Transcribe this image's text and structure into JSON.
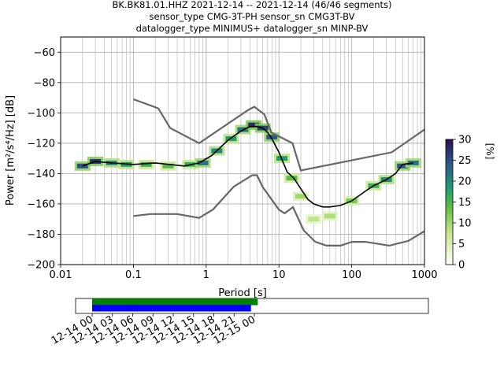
{
  "header": {
    "title_line1": "BK.BK81.01.HHZ   2021-12-14 -- 2021-12-14  (46/46 segments)",
    "title_line2": "sensor_type CMG-3T-PH sensor_sn CMG3T-BV",
    "title_line3": "datalogger_type MINIMUS+ datalogger_sn MINP-BV"
  },
  "colors": {
    "median": "#000000",
    "noise_model": "#666666",
    "grid": "#b0b0b0",
    "cmap_low": "#ffffff",
    "cmap_mid": "#63c040",
    "cmap_high": "#2b1150",
    "segments_top": "#008000",
    "segments_bottom": "#0000ff"
  },
  "chart_data": [
    {
      "type": "heatmap",
      "title": "",
      "xlabel": "Period [s]",
      "ylabel": "Power [m²/s⁴/Hz] [dB]",
      "xscale": "log",
      "xlim": [
        0.01,
        1000
      ],
      "ylim": [
        -200,
        -50
      ],
      "xticks": [
        "0.01",
        "0.1",
        "1",
        "10",
        "100",
        "1000"
      ],
      "yticks": [
        "−60",
        "−80",
        "−100",
        "−120",
        "−140",
        "−160",
        "−180",
        "−200"
      ],
      "colorbar": {
        "label": "[%]",
        "range": [
          0,
          30
        ],
        "ticks": [
          "0",
          "5",
          "10",
          "15",
          "20",
          "25",
          "30"
        ]
      },
      "series": [
        {
          "name": "",
          "role": "median",
          "x": [
            0.02,
            0.03,
            0.05,
            0.1,
            0.2,
            0.5,
            0.8,
            1.2,
            2,
            3,
            4,
            5,
            6,
            7,
            8,
            10,
            13,
            16,
            20,
            25,
            30,
            40,
            50,
            70,
            100,
            150,
            200,
            300,
            400,
            500,
            700
          ],
          "y": [
            -135,
            -132,
            -133,
            -134,
            -133,
            -135,
            -133,
            -128,
            -118,
            -112,
            -109,
            -109,
            -110,
            -113,
            -117,
            -126,
            -139,
            -143,
            -150,
            -157,
            -160,
            -162,
            -162,
            -161,
            -158,
            -152,
            -148,
            -144,
            -140,
            -134,
            -133
          ]
        },
        {
          "name": "",
          "role": "noise_model_high",
          "x": [
            0.1,
            0.22,
            0.32,
            0.8,
            3.8,
            4.6,
            6.3,
            7.9,
            15.4,
            20,
            354.8,
            1000
          ],
          "y": [
            -91,
            -97,
            -110,
            -120,
            -98,
            -96,
            -101,
            -113,
            -120,
            -138,
            -126,
            -111
          ]
        },
        {
          "name": "",
          "role": "noise_model_low",
          "x": [
            0.1,
            0.17,
            0.4,
            0.8,
            1.24,
            2.4,
            4.3,
            5,
            6,
            10,
            12,
            15.6,
            21.9,
            31.6,
            45,
            70,
            101,
            154,
            328,
            600,
            1000
          ],
          "y": [
            -168,
            -166.7,
            -166.7,
            -169.2,
            -163.7,
            -148.6,
            -141.1,
            -141.1,
            -149,
            -163.8,
            -166.2,
            -162.1,
            -177.5,
            -185,
            -187.5,
            -187.5,
            -185,
            -185,
            -187.5,
            -184.4,
            -178
          ]
        }
      ],
      "density": [
        {
          "x": 0.02,
          "y": -135,
          "p": 25
        },
        {
          "x": 0.03,
          "y": -132,
          "p": 27
        },
        {
          "x": 0.05,
          "y": -133,
          "p": 20
        },
        {
          "x": 0.08,
          "y": -134,
          "p": 18
        },
        {
          "x": 0.15,
          "y": -134,
          "p": 16
        },
        {
          "x": 0.3,
          "y": -135,
          "p": 14
        },
        {
          "x": 0.6,
          "y": -134,
          "p": 16
        },
        {
          "x": 0.9,
          "y": -133,
          "p": 22
        },
        {
          "x": 1.4,
          "y": -125,
          "p": 20
        },
        {
          "x": 2.2,
          "y": -117,
          "p": 18
        },
        {
          "x": 3.2,
          "y": -111,
          "p": 22
        },
        {
          "x": 4.5,
          "y": -108,
          "p": 28
        },
        {
          "x": 6,
          "y": -110,
          "p": 26
        },
        {
          "x": 8,
          "y": -116,
          "p": 24
        },
        {
          "x": 11,
          "y": -130,
          "p": 18
        },
        {
          "x": 15,
          "y": -143,
          "p": 14
        },
        {
          "x": 20,
          "y": -155,
          "p": 10
        },
        {
          "x": 30,
          "y": -170,
          "p": 8
        },
        {
          "x": 50,
          "y": -168,
          "p": 9
        },
        {
          "x": 100,
          "y": -158,
          "p": 12
        },
        {
          "x": 200,
          "y": -148,
          "p": 16
        },
        {
          "x": 300,
          "y": -144,
          "p": 20
        },
        {
          "x": 500,
          "y": -135,
          "p": 24
        },
        {
          "x": 700,
          "y": -133,
          "p": 22
        }
      ]
    },
    {
      "type": "bar",
      "title": "",
      "role": "data_availability",
      "xlabel": "",
      "ylabel": "",
      "xticks": [
        "12-14 00",
        "12-14 03",
        "12-14 06",
        "12-14 09",
        "12-14 12",
        "12-14 15",
        "12-14 18",
        "12-14 21",
        "12-15 00"
      ],
      "bars": [
        {
          "name": "",
          "start": "12-14 00:00",
          "end": "12-15 00:30",
          "color": "#008000"
        },
        {
          "name": "",
          "start": "12-14 00:00",
          "end": "12-14 23:30",
          "color": "#0000ff"
        }
      ]
    }
  ]
}
